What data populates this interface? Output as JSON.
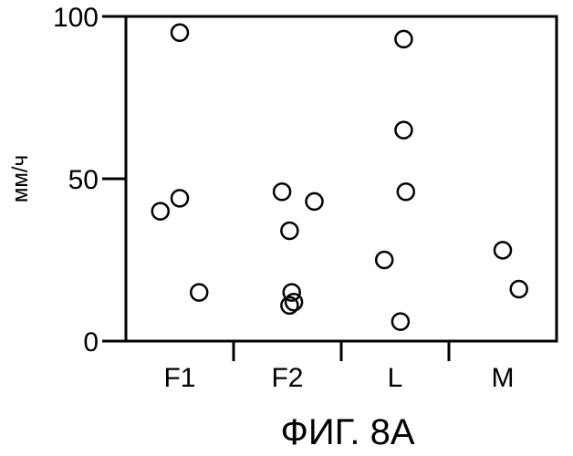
{
  "chart_data": {
    "type": "scatter",
    "title": "",
    "xlabel": "",
    "ylabel": "мм/ч",
    "categories": [
      "F1",
      "F2",
      "L",
      "M"
    ],
    "y_ticks": [
      "0",
      "50",
      "100"
    ],
    "ylim": [
      0,
      100
    ],
    "grid": false,
    "legend": "none",
    "points": [
      {
        "category": "F1",
        "offset": 0.0,
        "y": 95
      },
      {
        "category": "F1",
        "offset": -0.18,
        "y": 40
      },
      {
        "category": "F1",
        "offset": 0.0,
        "y": 44
      },
      {
        "category": "F1",
        "offset": 0.18,
        "y": 15
      },
      {
        "category": "F2",
        "offset": -0.05,
        "y": 46
      },
      {
        "category": "F2",
        "offset": 0.25,
        "y": 43
      },
      {
        "category": "F2",
        "offset": 0.02,
        "y": 34
      },
      {
        "category": "F2",
        "offset": 0.04,
        "y": 15
      },
      {
        "category": "F2",
        "offset": 0.02,
        "y": 11
      },
      {
        "category": "F2",
        "offset": 0.06,
        "y": 12
      },
      {
        "category": "L",
        "offset": 0.08,
        "y": 93
      },
      {
        "category": "L",
        "offset": 0.08,
        "y": 65
      },
      {
        "category": "L",
        "offset": 0.1,
        "y": 46
      },
      {
        "category": "L",
        "offset": -0.1,
        "y": 25
      },
      {
        "category": "L",
        "offset": 0.05,
        "y": 6
      },
      {
        "category": "M",
        "offset": 0.0,
        "y": 28
      },
      {
        "category": "M",
        "offset": 0.15,
        "y": 16
      }
    ],
    "marker": "open-circle",
    "colors": {
      "ink": "#000000",
      "background": "#ffffff"
    }
  },
  "caption": "ФИГ. 8A"
}
